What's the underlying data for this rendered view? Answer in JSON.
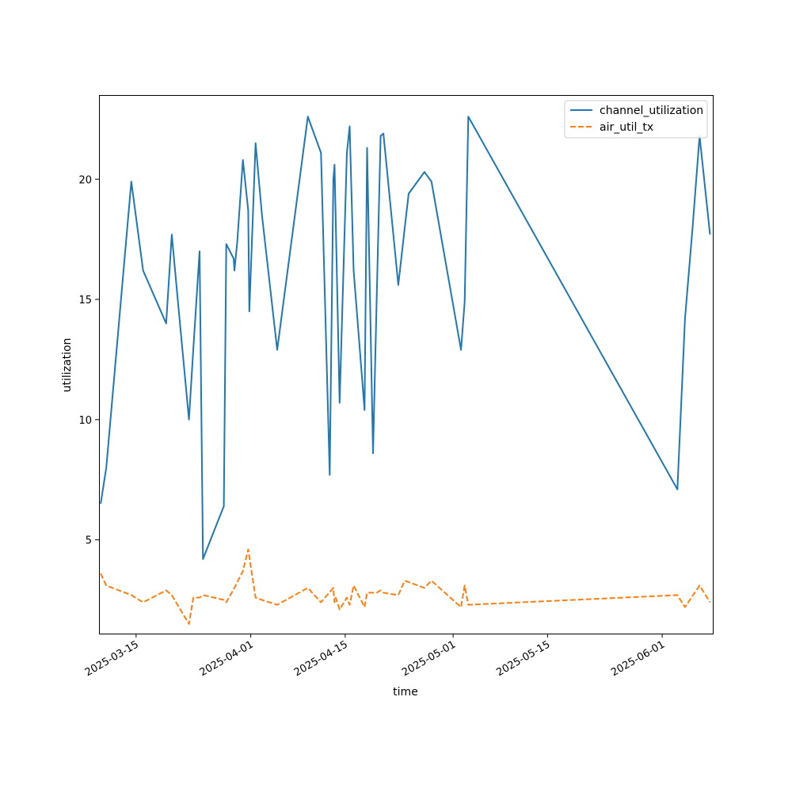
{
  "chart_data": {
    "type": "line",
    "xlabel": "time",
    "ylabel": "utilization",
    "x_type": "date",
    "xlim": [
      "2025-03-07",
      "2025-06-05"
    ],
    "ylim": [
      1.1,
      23.5
    ],
    "grid": false,
    "legend_position": "top-right",
    "x_tick_labels": [
      "2025-03-15",
      "2025-04-01",
      "2025-04-15",
      "2025-05-01",
      "2025-05-15",
      "2025-06-01"
    ],
    "y_tick_labels": [
      "5",
      "10",
      "15",
      "20"
    ],
    "series": [
      {
        "name": "channel_utilization",
        "color": "#1f77b4",
        "line_style": "solid",
        "points": [
          [
            "2025-03-09 18:00",
            6.5
          ],
          [
            "2025-03-10 14:00",
            8.0
          ],
          [
            "2025-03-14 07:00",
            19.9
          ],
          [
            "2025-03-16 01:00",
            16.2
          ],
          [
            "2025-03-19 11:00",
            14.0
          ],
          [
            "2025-03-20 07:00",
            17.7
          ],
          [
            "2025-03-21 04:00",
            15.0
          ],
          [
            "2025-03-22 20:00",
            10.0
          ],
          [
            "2025-03-23 12:00",
            13.0
          ],
          [
            "2025-03-24 10:00",
            17.0
          ],
          [
            "2025-03-24 22:00",
            4.2
          ],
          [
            "2025-03-28 00:00",
            6.4
          ],
          [
            "2025-03-28 09:00",
            17.3
          ],
          [
            "2025-03-29 11:00",
            16.7
          ],
          [
            "2025-03-29 14:00",
            16.2
          ],
          [
            "2025-03-30 00:00",
            17.4
          ],
          [
            "2025-03-30 20:00",
            20.8
          ],
          [
            "2025-03-31 15:00",
            18.7
          ],
          [
            "2025-03-31 19:00",
            14.5
          ],
          [
            "2025-04-01 17:00",
            21.5
          ],
          [
            "2025-04-02 16:00",
            18.5
          ],
          [
            "2025-04-04 22:00",
            12.9
          ],
          [
            "2025-04-09 11:00",
            22.6
          ],
          [
            "2025-04-11 10:00",
            21.1
          ],
          [
            "2025-04-12 17:00",
            7.7
          ],
          [
            "2025-04-13 06:00",
            20.0
          ],
          [
            "2025-04-13 10:00",
            20.6
          ],
          [
            "2025-04-14 04:00",
            10.7
          ],
          [
            "2025-04-15 06:00",
            21.1
          ],
          [
            "2025-04-15 16:00",
            22.2
          ],
          [
            "2025-04-16 06:00",
            16.2
          ],
          [
            "2025-04-17 21:00",
            10.4
          ],
          [
            "2025-04-18 06:00",
            21.3
          ],
          [
            "2025-04-19 03:00",
            8.6
          ],
          [
            "2025-04-19 16:00",
            15.0
          ],
          [
            "2025-04-20 06:00",
            21.8
          ],
          [
            "2025-04-20 16:00",
            21.9
          ],
          [
            "2025-04-22 21:00",
            15.6
          ],
          [
            "2025-04-23 20:00",
            18.0
          ],
          [
            "2025-04-24 10:00",
            19.4
          ],
          [
            "2025-04-26 18:00",
            20.3
          ],
          [
            "2025-04-27 19:00",
            19.9
          ],
          [
            "2025-05-02 04:00",
            12.9
          ],
          [
            "2025-05-02 17:00",
            14.9
          ],
          [
            "2025-05-03 06:00",
            22.6
          ],
          [
            "2025-06-03 06:00",
            7.1
          ],
          [
            "2025-06-04 09:00",
            14.2
          ],
          [
            "2025-06-05 12:00",
            18.0
          ],
          [
            "2025-06-06 13:00",
            21.8
          ],
          [
            "2025-06-08 02:00",
            17.7
          ]
        ]
      },
      {
        "name": "air_util_tx",
        "color": "#ff7f0e",
        "line_style": "dashed",
        "points": [
          [
            "2025-03-09 18:00",
            3.6
          ],
          [
            "2025-03-10 14:00",
            3.1
          ],
          [
            "2025-03-14 07:00",
            2.7
          ],
          [
            "2025-03-16 01:00",
            2.4
          ],
          [
            "2025-03-19 11:00",
            2.9
          ],
          [
            "2025-03-20 07:00",
            2.7
          ],
          [
            "2025-03-22 20:00",
            1.5
          ],
          [
            "2025-03-23 12:00",
            2.6
          ],
          [
            "2025-03-24 10:00",
            2.6
          ],
          [
            "2025-03-24 22:00",
            2.7
          ],
          [
            "2025-03-28 00:00",
            2.5
          ],
          [
            "2025-03-28 09:00",
            2.4
          ],
          [
            "2025-03-29 14:00",
            3.0
          ],
          [
            "2025-03-30 20:00",
            3.7
          ],
          [
            "2025-03-31 15:00",
            4.6
          ],
          [
            "2025-04-01 17:00",
            2.6
          ],
          [
            "2025-04-02 16:00",
            2.5
          ],
          [
            "2025-04-04 22:00",
            2.3
          ],
          [
            "2025-04-09 11:00",
            3.0
          ],
          [
            "2025-04-11 10:00",
            2.4
          ],
          [
            "2025-04-13 06:00",
            3.0
          ],
          [
            "2025-04-13 10:00",
            2.4
          ],
          [
            "2025-04-13 14:00",
            2.6
          ],
          [
            "2025-04-14 04:00",
            2.1
          ],
          [
            "2025-04-15 06:00",
            2.6
          ],
          [
            "2025-04-15 16:00",
            2.3
          ],
          [
            "2025-04-16 06:00",
            3.1
          ],
          [
            "2025-04-17 21:00",
            2.2
          ],
          [
            "2025-04-18 06:00",
            2.8
          ],
          [
            "2025-04-19 16:00",
            2.8
          ],
          [
            "2025-04-20 06:00",
            2.9
          ],
          [
            "2025-04-20 16:00",
            2.8
          ],
          [
            "2025-04-22 21:00",
            2.7
          ],
          [
            "2025-04-23 20:00",
            3.3
          ],
          [
            "2025-04-26 18:00",
            3.0
          ],
          [
            "2025-04-27 19:00",
            3.3
          ],
          [
            "2025-05-02 04:00",
            2.2
          ],
          [
            "2025-05-02 17:00",
            3.1
          ],
          [
            "2025-05-03 06:00",
            2.3
          ],
          [
            "2025-06-03 06:00",
            2.7
          ],
          [
            "2025-06-04 09:00",
            2.2
          ],
          [
            "2025-06-06 13:00",
            3.1
          ],
          [
            "2025-06-08 02:00",
            2.4
          ]
        ]
      }
    ]
  }
}
